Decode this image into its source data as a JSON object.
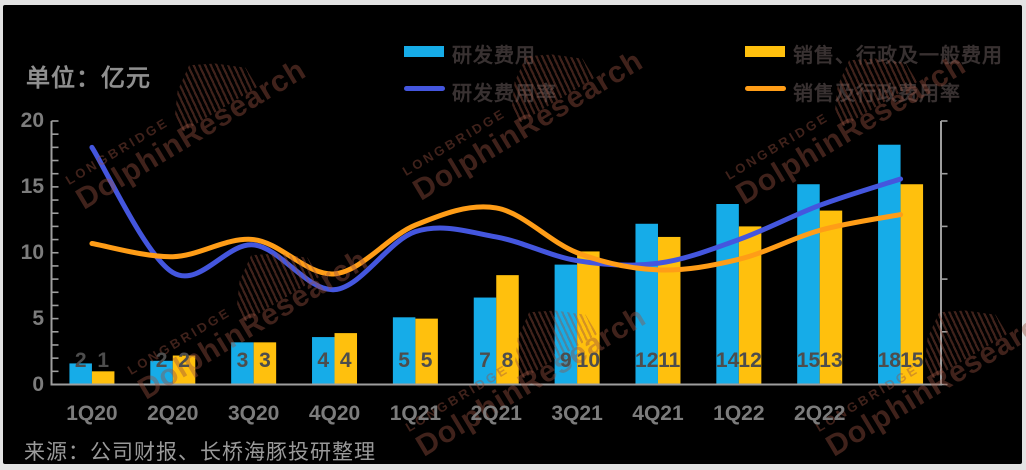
{
  "page": {
    "background": "#e3e3e3",
    "canvas_background": "#000000"
  },
  "unit_label": "单位：亿元",
  "source_label": "来源：公司财报、长桥海豚投研整理",
  "watermark": {
    "brand": "LONGBRIDGE",
    "name": "DolphinResearch",
    "equalizer_icon": "equalizer-bars"
  },
  "legend": [
    {
      "label": "研发费用",
      "type": "bar",
      "color": "#16ACE8"
    },
    {
      "label": "销售、行政及一般费用",
      "type": "bar",
      "color": "#FFC00D"
    },
    {
      "label": "研发费用率",
      "type": "line",
      "color": "#4456DE"
    },
    {
      "label": "销售及行政费用率",
      "type": "line",
      "color": "#FF9D17"
    }
  ],
  "colors": {
    "rd_expense_bar": "#16ACE8",
    "sga_expense_bar": "#FFC00D",
    "rd_rate_line": "#4456DE",
    "sga_rate_line": "#FF9D17",
    "axis": "#9e9e9e",
    "axis_text": "#7c7c7c",
    "bar_label_text": "#4d4d4d"
  },
  "chart_data": {
    "type": "bar",
    "subtype": "grouped bars with two smoothed rate lines",
    "unit": "亿元",
    "categories": [
      "1Q20",
      "2Q20",
      "3Q20",
      "4Q20",
      "1Q21",
      "2Q21",
      "3Q21",
      "4Q21",
      "1Q22",
      "2Q22",
      ""
    ],
    "y_axis": {
      "min": 0,
      "max": 20,
      "tick_labels": [
        "0",
        "5",
        "10",
        "15",
        "20"
      ],
      "minor_tick_step": 1,
      "grid": false
    },
    "right_axis": {
      "labels_visible": false,
      "tick_positions": [
        0,
        4,
        8,
        12,
        16,
        20
      ]
    },
    "bar_series": [
      {
        "name": "研发费用",
        "color": "#16ACE8",
        "values": [
          1.6,
          1.8,
          3.2,
          3.6,
          5.1,
          6.6,
          9.1,
          12.2,
          13.7,
          15.2,
          18.2
        ],
        "labels": [
          "2",
          "2",
          "3",
          "4",
          "5",
          "7",
          "9",
          "12",
          "14",
          "15",
          "18"
        ]
      },
      {
        "name": "销售、行政及一般费用",
        "color": "#FFC00D",
        "values": [
          1.0,
          2.2,
          3.2,
          3.9,
          5.0,
          8.3,
          10.1,
          11.2,
          12.0,
          13.2,
          15.2
        ],
        "labels": [
          "1",
          "2",
          "3",
          "4",
          "5",
          "8",
          "10",
          "11",
          "12",
          "13",
          "15"
        ]
      }
    ],
    "line_series": [
      {
        "name": "研发费用率",
        "color": "#4456DE",
        "values": [
          18.0,
          8.5,
          10.6,
          7.2,
          11.6,
          11.2,
          9.4,
          9.2,
          11.0,
          13.6,
          15.6
        ]
      },
      {
        "name": "销售及行政费用率",
        "color": "#FF9D17",
        "values": [
          10.7,
          9.7,
          11.0,
          8.4,
          12.1,
          13.4,
          10.0,
          8.7,
          9.5,
          11.7,
          12.9
        ]
      }
    ],
    "legend_position": "top",
    "title": "",
    "xlabel": "",
    "ylabel": "单位：亿元"
  }
}
